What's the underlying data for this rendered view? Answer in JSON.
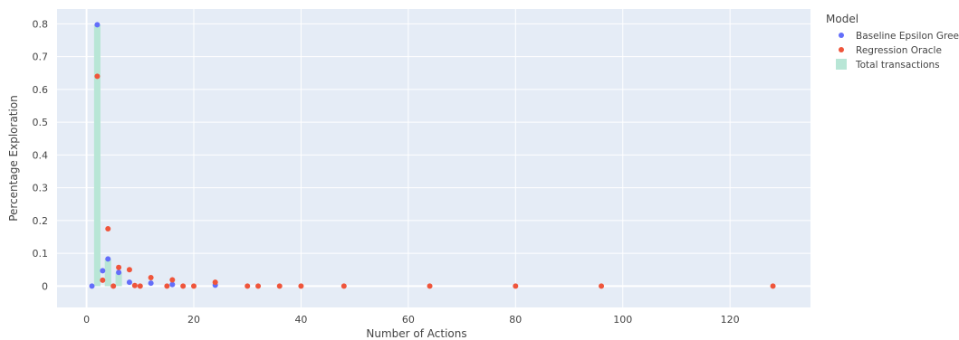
{
  "chart_data": {
    "type": "scatter",
    "xlabel": "Number of Actions",
    "ylabel": "Percentage Exploration",
    "xlim": [
      -5.5,
      135
    ],
    "ylim": [
      -0.065,
      0.845
    ],
    "x_ticks": [
      0,
      20,
      40,
      60,
      80,
      100,
      120
    ],
    "y_ticks": [
      0,
      0.1,
      0.2,
      0.3,
      0.4,
      0.5,
      0.6,
      0.7,
      0.8
    ],
    "y_tick_labels": [
      "0",
      "0.1",
      "0.2",
      "0.3",
      "0.4",
      "0.5",
      "0.6",
      "0.7",
      "0.8"
    ],
    "grid": true,
    "legend_title": "Model",
    "legend_placement": "right",
    "series": [
      {
        "name": "Baseline Epsilon Greedy",
        "kind": "scatter",
        "color": "#636efa",
        "x": [
          1,
          2,
          3,
          4,
          6,
          8,
          12,
          16,
          24
        ],
        "y": [
          0,
          0.797,
          0.047,
          0.083,
          0.042,
          0.012,
          0.009,
          0.005,
          0.003
        ]
      },
      {
        "name": "Regression Oracle",
        "kind": "scatter",
        "color": "#ef553b",
        "x": [
          2,
          3,
          4,
          5,
          6,
          8,
          9,
          10,
          12,
          15,
          16,
          18,
          20,
          24,
          30,
          32,
          36,
          40,
          48,
          64,
          80,
          96,
          128
        ],
        "y": [
          0.64,
          0.018,
          0.175,
          0,
          0.057,
          0.05,
          0.002,
          0,
          0.026,
          0,
          0.019,
          0,
          0,
          0.012,
          0,
          0,
          0,
          0,
          0,
          0,
          0,
          0,
          0
        ]
      },
      {
        "name": "Total transactions",
        "kind": "bar",
        "color": "#b8e6d6",
        "x": [
          2,
          4,
          6
        ],
        "y": [
          0.797,
          0.083,
          0.042
        ]
      }
    ]
  }
}
